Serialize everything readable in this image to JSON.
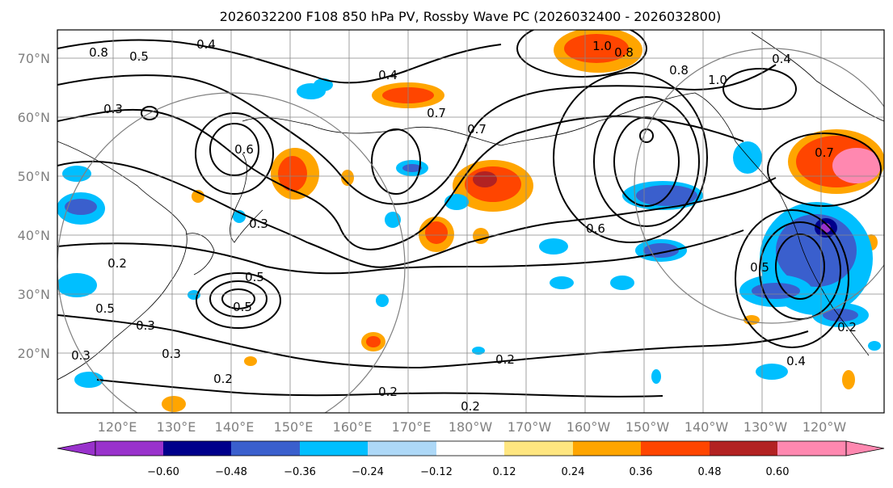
{
  "title": "2026032200 F108 850 hPa PV, Rossby Wave PC (2026032400 - 2026032800)",
  "latitude_labels": [
    "70°N",
    "60°N",
    "50°N",
    "40°N",
    "30°N",
    "20°N"
  ],
  "longitude_labels": [
    "120°E",
    "130°E",
    "140°E",
    "150°E",
    "160°E",
    "170°E",
    "180°W",
    "170°W",
    "160°W",
    "150°W",
    "140°W",
    "130°W",
    "120°W"
  ],
  "colorbar": {
    "tick_labels": [
      "−0.60",
      "−0.48",
      "−0.36",
      "−0.24",
      "−0.12",
      "0.12",
      "0.24",
      "0.36",
      "0.48",
      "0.60"
    ],
    "colors": [
      "#9932cc",
      "#00008b",
      "#3a5fcd",
      "#00bfff",
      "#add8f7",
      "#ffffff",
      "#ffe680",
      "#ffa500",
      "#ff4500",
      "#b22222",
      "#ff88b0"
    ]
  },
  "contour_labels": {
    "l1": "0.8",
    "l2": "0.4",
    "l3": "0.5",
    "l4": "0.3",
    "l5": "0.4",
    "l6": "0.7",
    "l7": "0.7",
    "l8": "1.0",
    "l9": "0.8",
    "l10": "0.8",
    "l11": "1.0",
    "l12": "0.7",
    "l13": "0.6",
    "l14": "0.3",
    "l15": "0.5",
    "l16": "0.5",
    "l17": "0.2",
    "l18": "0.5",
    "l19": "0.3",
    "l20": "0.3",
    "l21": "0.2",
    "l22": "0.2",
    "l23": "0.2",
    "l24": "0.2",
    "l25": "0.5",
    "l26": "0.2",
    "l27": "0.4",
    "l28": "0.3",
    "l29": "0.6",
    "l30": "0.4"
  }
}
